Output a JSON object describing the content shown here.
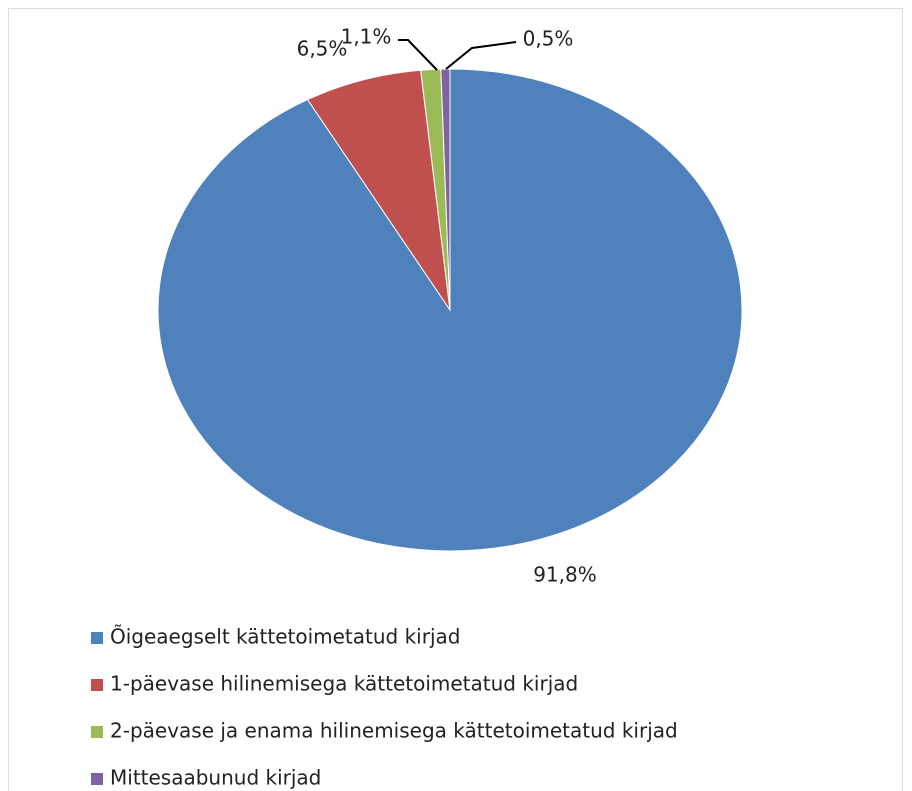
{
  "chart_data": {
    "type": "pie",
    "categories": [
      "Õigeaegselt kättetoimetatud kirjad",
      "1-päevase hilinemisega kättetoimetatud kirjad",
      "2-päevase ja enama hilinemisega kättetoimetatud kirjad",
      "Mittesaabunud kirjad"
    ],
    "values": [
      91.8,
      6.5,
      1.1,
      0.5
    ],
    "value_labels": [
      "91,8%",
      "6,5%",
      "1,1%",
      "0,5%"
    ],
    "colors": [
      "#4f81bd",
      "#c0504d",
      "#9bbb59",
      "#8064a2"
    ],
    "legend": "bottom"
  }
}
